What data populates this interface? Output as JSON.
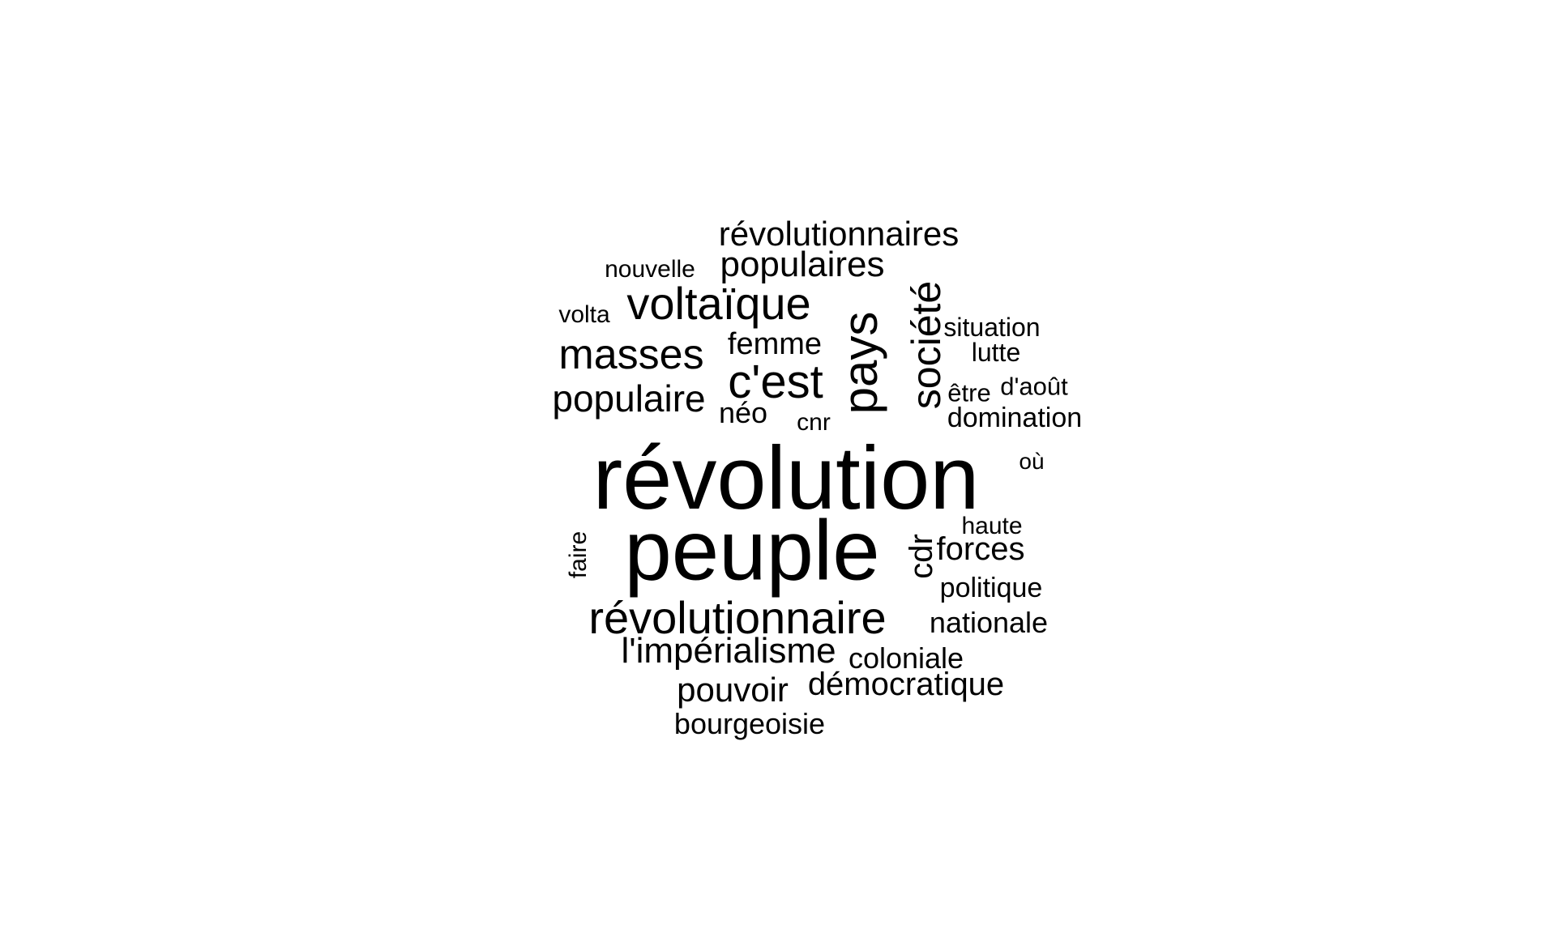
{
  "wordcloud": {
    "text_color": "#000000",
    "background": "#ffffff",
    "words": [
      {
        "text": "révolution"
      },
      {
        "text": "peuple"
      },
      {
        "text": "révolutionnaire"
      },
      {
        "text": "pays"
      },
      {
        "text": "société"
      },
      {
        "text": "c'est"
      },
      {
        "text": "voltaïque"
      },
      {
        "text": "masses"
      },
      {
        "text": "populaire"
      },
      {
        "text": "populaires"
      },
      {
        "text": "révolutionnaires"
      },
      {
        "text": "l'impérialisme"
      },
      {
        "text": "pouvoir"
      },
      {
        "text": "démocratique"
      },
      {
        "text": "forces"
      },
      {
        "text": "cdr"
      },
      {
        "text": "nationale"
      },
      {
        "text": "coloniale"
      },
      {
        "text": "bourgeoisie"
      },
      {
        "text": "femme"
      },
      {
        "text": "politique"
      },
      {
        "text": "domination"
      },
      {
        "text": "néo"
      },
      {
        "text": "situation"
      },
      {
        "text": "lutte"
      },
      {
        "text": "nouvelle"
      },
      {
        "text": "volta"
      },
      {
        "text": "d'août"
      },
      {
        "text": "être"
      },
      {
        "text": "cnr"
      },
      {
        "text": "où"
      },
      {
        "text": "haute"
      },
      {
        "text": "faire"
      }
    ]
  }
}
